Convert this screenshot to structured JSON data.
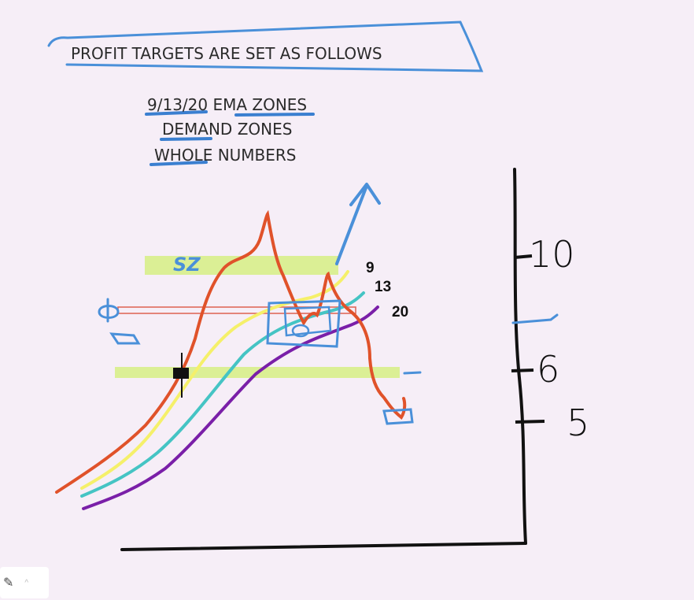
{
  "header": {
    "title": "PROFIT TARGETS ARE SET AS FOLLOWS"
  },
  "list": [
    "9/13/20 EMA ZONES",
    "DEMAND ZONES",
    "WHOLE NUMBERS"
  ],
  "ema_labels": [
    "9",
    "13",
    "20"
  ],
  "zone_label": "SZ",
  "axis_labels": [
    "10",
    "6",
    "5"
  ],
  "colors": {
    "background": "#f6eef7",
    "price_line": "#e0522a",
    "ema9": "#f5f06a",
    "ema13": "#45c4c4",
    "ema20": "#7a1fa8",
    "zone": "#d8ee8a",
    "pen_blue": "#4a90d9",
    "axis": "#111111"
  },
  "toolbar": {
    "tool_icon": "pen-tool-icon"
  }
}
